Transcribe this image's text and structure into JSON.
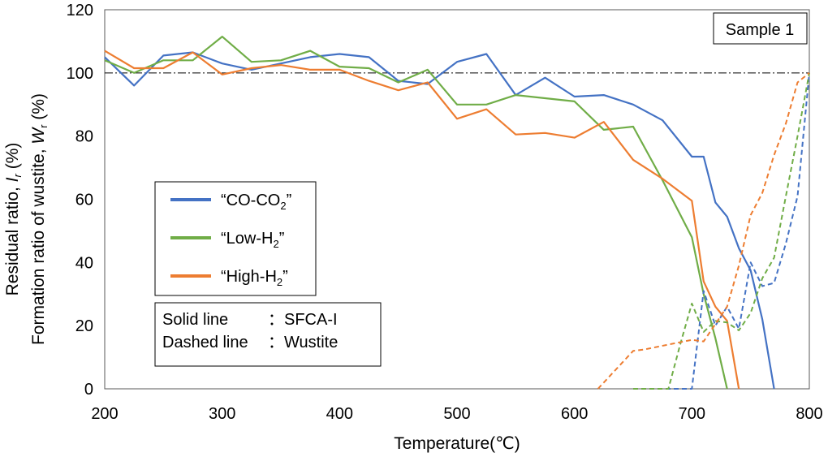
{
  "chart_data": {
    "type": "line",
    "sample_label": "Sample 1",
    "xlabel": "Temperature(℃)",
    "ylabel_line1_parts": [
      "Residual ratio, ",
      "I",
      "r",
      " (%)"
    ],
    "ylabel_line2_parts": [
      "Formation ratio of wustite, ",
      "W",
      "r",
      " (%)"
    ],
    "xlim": [
      200,
      800
    ],
    "ylim": [
      0,
      120
    ],
    "x_ticks": [
      "200",
      "300",
      "400",
      "500",
      "600",
      "700",
      "800"
    ],
    "y_ticks": [
      "0",
      "20",
      "40",
      "60",
      "80",
      "100",
      "120"
    ],
    "reference_line_y": 100,
    "legend": {
      "items": [
        {
          "pre": "“CO-CO",
          "sub": "2",
          "post": "”",
          "color": "#4472C4"
        },
        {
          "pre": "“Low-H",
          "sub": "2",
          "post": "”",
          "color": "#70AD47"
        },
        {
          "pre": "“High-H",
          "sub": "2",
          "post": "”",
          "color": "#ED7D31"
        }
      ]
    },
    "note": {
      "line1_left": "Solid line",
      "line1_right": "：SFCA-I",
      "line2_left": "Dashed line",
      "line2_right": "：Wustite"
    },
    "series": [
      {
        "group": "CO-CO2",
        "style": "solid",
        "color": "#4472C4",
        "x": [
          200,
          225,
          250,
          275,
          300,
          325,
          350,
          375,
          400,
          425,
          450,
          475,
          500,
          525,
          550,
          575,
          600,
          625,
          650,
          675,
          700,
          710,
          720,
          730,
          740,
          750,
          760,
          770
        ],
        "y": [
          105,
          96,
          105.5,
          106.5,
          103,
          101,
          103,
          105,
          106,
          105,
          97.5,
          96.5,
          103.5,
          106,
          93,
          98.5,
          92.5,
          93,
          90,
          85,
          73.5,
          73.5,
          59,
          54.5,
          44.5,
          37.5,
          22,
          0
        ]
      },
      {
        "group": "Low-H2",
        "style": "solid",
        "color": "#70AD47",
        "x": [
          200,
          225,
          250,
          275,
          300,
          325,
          350,
          375,
          400,
          425,
          450,
          475,
          500,
          525,
          550,
          575,
          600,
          625,
          650,
          675,
          700,
          710,
          720,
          730
        ],
        "y": [
          104,
          100,
          104,
          104,
          111.5,
          103.5,
          104,
          107,
          102,
          101.5,
          97,
          101,
          90,
          90,
          93,
          92,
          91,
          82,
          83,
          66,
          48,
          30,
          16,
          0
        ]
      },
      {
        "group": "High-H2",
        "style": "solid",
        "color": "#ED7D31",
        "x": [
          200,
          225,
          250,
          275,
          300,
          325,
          350,
          375,
          400,
          425,
          450,
          475,
          500,
          525,
          550,
          575,
          600,
          625,
          650,
          675,
          700,
          710,
          720,
          730,
          740
        ],
        "y": [
          107,
          101.5,
          101.5,
          106.5,
          99.5,
          101.5,
          102.5,
          101,
          101,
          97.5,
          94.5,
          97,
          85.5,
          88.5,
          80.5,
          81,
          79.5,
          84.5,
          72.5,
          66.5,
          59.5,
          34,
          26,
          21.5,
          0
        ]
      },
      {
        "group": "CO-CO2",
        "style": "dashed",
        "color": "#4472C4",
        "x": [
          650,
          660,
          670,
          680,
          690,
          700,
          710,
          720,
          730,
          740,
          750,
          760,
          770,
          780,
          790,
          800
        ],
        "y": [
          0,
          0,
          0,
          0,
          0,
          0,
          31,
          20,
          26,
          19,
          40,
          32.5,
          33.5,
          46,
          61,
          100
        ]
      },
      {
        "group": "Low-H2",
        "style": "dashed",
        "color": "#70AD47",
        "x": [
          650,
          660,
          670,
          680,
          690,
          700,
          710,
          720,
          730,
          740,
          750,
          760,
          770,
          780,
          790,
          800
        ],
        "y": [
          0,
          0,
          0,
          0,
          14,
          27,
          18,
          21.5,
          21,
          18.5,
          24,
          35,
          41.5,
          61,
          80,
          100
        ]
      },
      {
        "group": "High-H2",
        "style": "dashed",
        "color": "#ED7D31",
        "x": [
          620,
          650,
          660,
          680,
          700,
          710,
          720,
          730,
          740,
          750,
          760,
          770,
          780,
          790,
          800
        ],
        "y": [
          0,
          12,
          12.5,
          14,
          15.5,
          15,
          20.5,
          26,
          39,
          55,
          62,
          74,
          84,
          97,
          100
        ]
      }
    ]
  }
}
